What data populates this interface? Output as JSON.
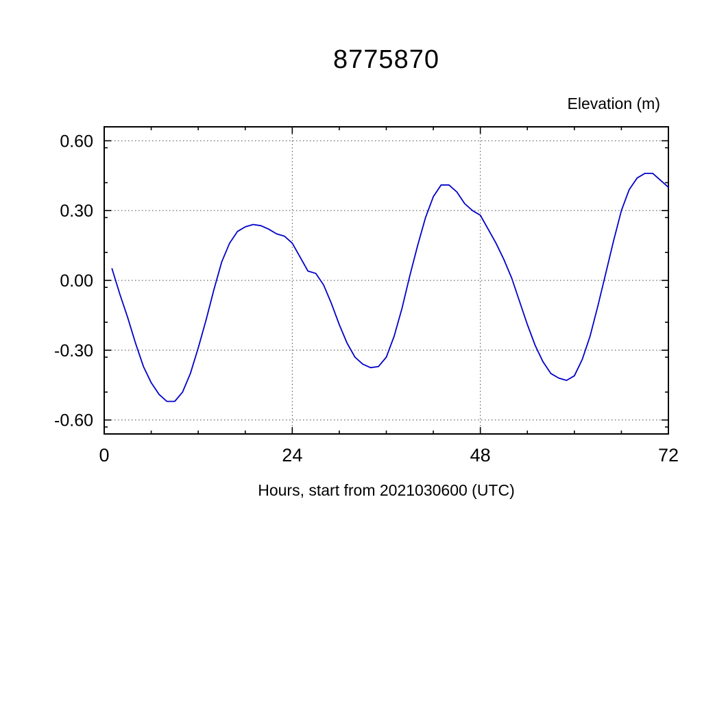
{
  "title": "8775870",
  "ylabel": "Elevation (m)",
  "xlabel": "Hours, start from 2021030600 (UTC)",
  "chart_data": {
    "type": "line",
    "title": "8775870",
    "xlabel": "Hours, start from 2021030600 (UTC)",
    "ylabel": "Elevation (m)",
    "xlim": [
      0,
      72
    ],
    "ylim": [
      -0.66,
      0.66
    ],
    "x_major_ticks": [
      0,
      24,
      48,
      72
    ],
    "x_minor_step": 6,
    "y_major_ticks": [
      0.6,
      0.3,
      0.0,
      -0.3,
      -0.6
    ],
    "y_minor_step": 0.15,
    "grid": "dashed",
    "legend": "none",
    "line_color": "#0000c8",
    "series": [
      {
        "name": "elevation",
        "x": [
          1,
          2,
          3,
          4,
          5,
          6,
          7,
          8,
          9,
          10,
          11,
          12,
          13,
          14,
          15,
          16,
          17,
          18,
          19,
          20,
          21,
          22,
          23,
          24,
          25,
          26,
          27,
          28,
          29,
          30,
          31,
          32,
          33,
          34,
          35,
          36,
          37,
          38,
          39,
          40,
          41,
          42,
          43,
          44,
          45,
          46,
          47,
          48,
          49,
          50,
          51,
          52,
          53,
          54,
          55,
          56,
          57,
          58,
          59,
          60,
          61,
          62,
          63,
          64,
          65,
          66,
          67,
          68,
          69,
          70,
          71,
          72
        ],
        "y": [
          0.05,
          -0.06,
          -0.16,
          -0.27,
          -0.37,
          -0.44,
          -0.49,
          -0.52,
          -0.52,
          -0.48,
          -0.4,
          -0.29,
          -0.17,
          -0.04,
          0.08,
          0.16,
          0.21,
          0.23,
          0.24,
          0.235,
          0.22,
          0.2,
          0.19,
          0.16,
          0.1,
          0.04,
          0.03,
          -0.02,
          -0.1,
          -0.19,
          -0.27,
          -0.33,
          -0.36,
          -0.375,
          -0.37,
          -0.33,
          -0.24,
          -0.12,
          0.02,
          0.15,
          0.27,
          0.36,
          0.41,
          0.41,
          0.38,
          0.33,
          0.3,
          0.28,
          0.22,
          0.16,
          0.09,
          0.01,
          -0.09,
          -0.19,
          -0.28,
          -0.35,
          -0.4,
          -0.42,
          -0.43,
          -0.41,
          -0.34,
          -0.24,
          -0.11,
          0.03,
          0.17,
          0.3,
          0.39,
          0.44,
          0.46,
          0.46,
          0.43,
          0.4
        ]
      }
    ]
  }
}
